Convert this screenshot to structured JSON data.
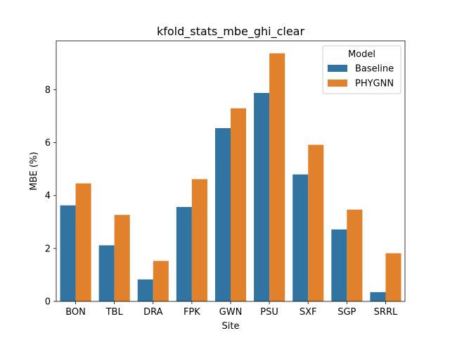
{
  "chart_data": {
    "type": "bar",
    "title": "kfold_stats_mbe_ghi_clear",
    "xlabel": "Site",
    "ylabel": "MBE (%)",
    "categories": [
      "BON",
      "TBL",
      "DRA",
      "FPK",
      "GWN",
      "PSU",
      "SXF",
      "SGP",
      "SRRL"
    ],
    "series": [
      {
        "name": "Baseline",
        "color": "#3274a1",
        "values": [
          3.63,
          2.12,
          0.83,
          3.57,
          6.55,
          7.88,
          4.8,
          2.72,
          0.35
        ]
      },
      {
        "name": "PHYGNN",
        "color": "#e1812c",
        "values": [
          4.46,
          3.27,
          1.53,
          4.62,
          7.3,
          9.38,
          5.92,
          3.47,
          1.82
        ]
      }
    ],
    "ylim": [
      0,
      9.85
    ],
    "yticks": [
      0,
      2,
      4,
      6,
      8
    ],
    "legend": {
      "title": "Model",
      "placement": "top-right"
    },
    "grid": false
  }
}
